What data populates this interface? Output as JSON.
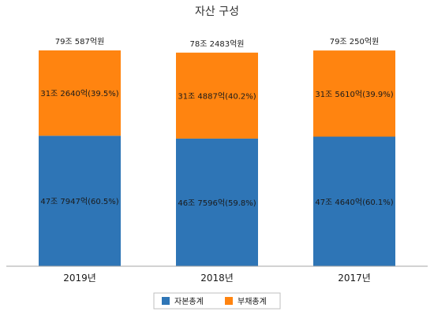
{
  "chart_data": {
    "type": "bar",
    "stacked": true,
    "title": "자산 구성",
    "categories": [
      "2019년",
      "2018년",
      "2017년"
    ],
    "totals": [
      "79조 587억원",
      "78조 2483억원",
      "79조 250억원"
    ],
    "series": [
      {
        "name": "자본총계",
        "color": "#2e75b6",
        "values": [
          47.7947,
          46.7596,
          47.464
        ],
        "labels": [
          "47조 7947억(60.5%)",
          "46조 7596억(59.8%)",
          "47조 4640억(60.1%)"
        ]
      },
      {
        "name": "부채총계",
        "color": "#ff8410",
        "values": [
          31.264,
          31.4887,
          31.561
        ],
        "labels": [
          "31조 2640억(39.5%)",
          "31조 4887억(40.2%)",
          "31조 5610억(39.9%)"
        ]
      }
    ],
    "ylim": [
      0,
      79.0587
    ],
    "grid": false,
    "legend_position": "bottom"
  }
}
